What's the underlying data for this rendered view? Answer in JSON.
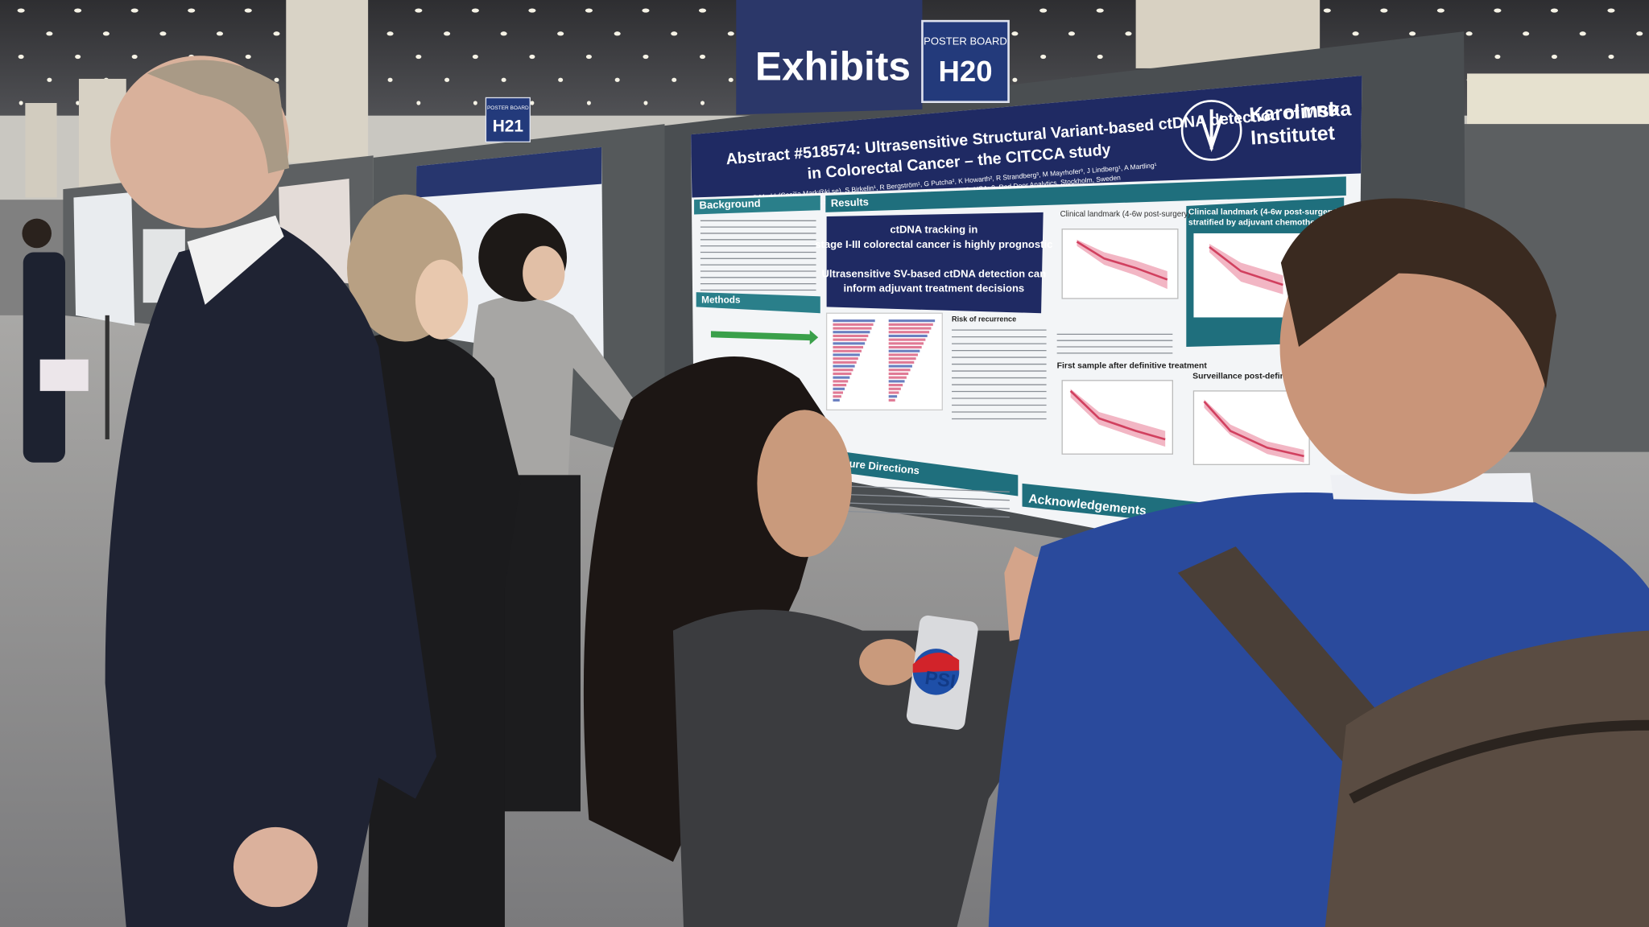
{
  "signs": {
    "exhibits": "Exhibits",
    "board_h20": {
      "caption": "POSTER BOARD",
      "label": "H20"
    },
    "board_h21": {
      "caption": "POSTER BOARD",
      "label": "H21"
    }
  },
  "poster": {
    "title_lines": [
      "Abstract #518574: Ultrasensitive Structural Variant-based ctDNA detection of MRD",
      "in Colorectal Cancer – the CITCCA study"
    ],
    "authors": "C Mark¹ (Cecilia.Mark@ki.se), S Birkelin¹, R Bergström¹, G Putcha², K Howarth², R Strandberg³, M Mayrhofer³, J Lindberg¹, A Martling¹",
    "affiliations": "1. Karolinska Institutet, Stockholm Sweden; 2. SAGA Dx, Morrisville, NC, USA; 3. Red Door Analytics, Stockholm, Sweden",
    "institution_lines": [
      "Karolinska",
      "Institutet"
    ],
    "sections": {
      "background": "Background",
      "results": "Results",
      "methods": "Methods",
      "future": "Future Directions",
      "acknowledgements": "Acknowledgements"
    },
    "key_messages": [
      "ctDNA tracking in",
      "stage I-III colorectal cancer is highly prognostic",
      "Ultrasensitive SV-based ctDNA detection can",
      "inform adjuvant treatment decisions"
    ],
    "chart_titles": [
      "Clinical landmark (4-6w post-surgery)",
      "Clinical landmark (4-6w post-surgery)",
      "stratified by adjuvant chemotherapy (ACT)",
      "First sample after definitive treatment",
      "Surveillance post-definitive t"
    ],
    "risk_heading": "Risk of recurrence"
  },
  "can": {
    "text": "PSI"
  }
}
